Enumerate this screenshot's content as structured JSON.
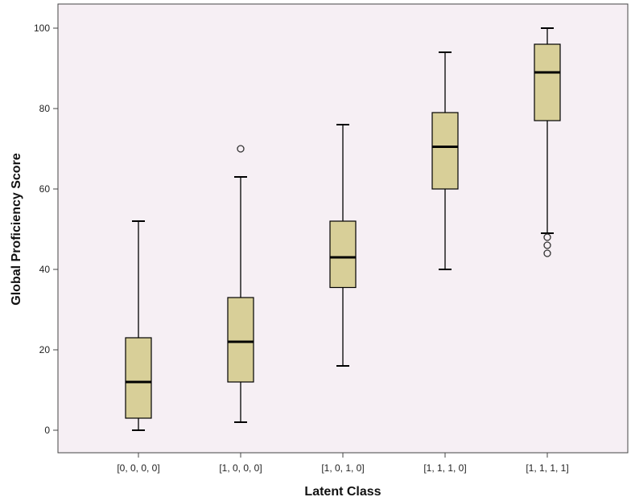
{
  "chart_data": {
    "type": "boxplot",
    "title": "",
    "xlabel": "Latent Class",
    "ylabel": "Global Proficiency Score",
    "ylim": [
      -6,
      106
    ],
    "yticks": [
      0,
      20,
      40,
      60,
      80,
      100
    ],
    "grid": false,
    "colors": {
      "plot_background": "#f6eff4",
      "box_fill": "#d8cf98",
      "line": "#000000",
      "axis": "#444444"
    },
    "categories": [
      "[0, 0, 0, 0]",
      "[1, 0, 0, 0]",
      "[1, 0, 1, 0]",
      "[1, 1, 1, 0]",
      "[1, 1, 1, 1]"
    ],
    "boxes": [
      {
        "category": "[0, 0, 0, 0]",
        "whisker_low": 0,
        "q1": 3,
        "median": 12,
        "q3": 23,
        "whisker_high": 52,
        "outliers": []
      },
      {
        "category": "[1, 0, 0, 0]",
        "whisker_low": 2,
        "q1": 12,
        "median": 22,
        "q3": 33,
        "whisker_high": 63,
        "outliers": [
          70
        ]
      },
      {
        "category": "[1, 0, 1, 0]",
        "whisker_low": 16,
        "q1": 35.5,
        "median": 43,
        "q3": 52,
        "whisker_high": 76,
        "outliers": []
      },
      {
        "category": "[1, 1, 1, 0]",
        "whisker_low": 40,
        "q1": 60,
        "median": 70.5,
        "q3": 79,
        "whisker_high": 94,
        "outliers": []
      },
      {
        "category": "[1, 1, 1, 1]",
        "whisker_low": 49,
        "q1": 77,
        "median": 89,
        "q3": 96,
        "whisker_high": 100,
        "outliers": [
          48,
          46,
          44
        ]
      }
    ]
  }
}
